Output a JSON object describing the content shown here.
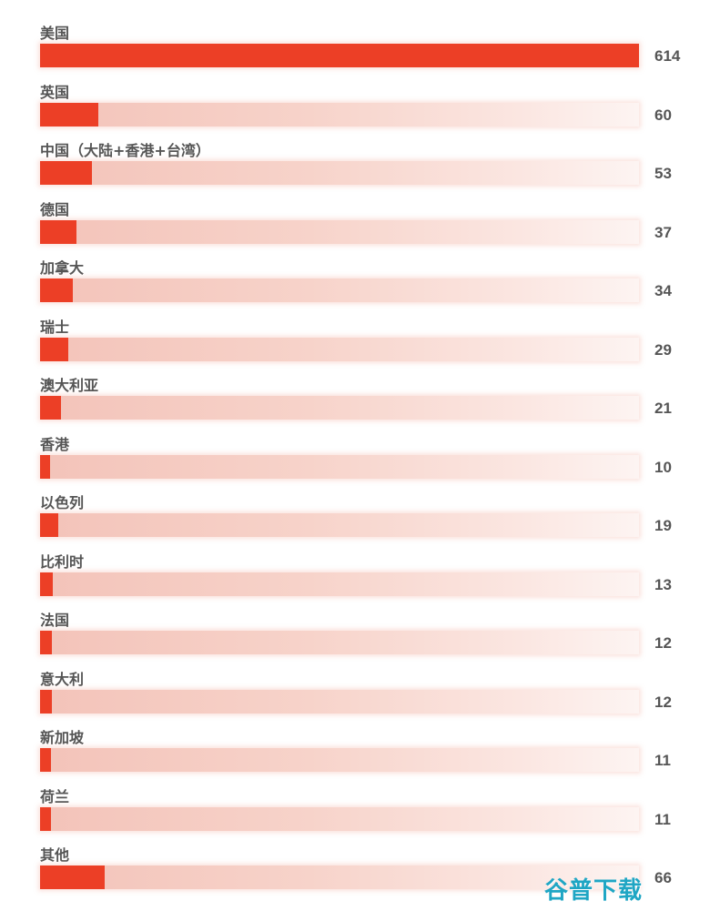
{
  "chart_data": {
    "type": "bar",
    "orientation": "horizontal",
    "title": "",
    "xlabel": "",
    "ylabel": "",
    "xlim": [
      0,
      614
    ],
    "grid": false,
    "legend": "none",
    "categories": [
      "美国",
      "英国",
      "中国（大陆+香港+台湾）",
      "德国",
      "加拿大",
      "瑞士",
      "澳大利亚",
      "香港",
      "以色列",
      "比利时",
      "法国",
      "意大利",
      "新加坡",
      "荷兰",
      "其他"
    ],
    "values": [
      614,
      60,
      53,
      37,
      34,
      29,
      21,
      10,
      19,
      13,
      12,
      12,
      11,
      11,
      66
    ],
    "colors": {
      "bar": "#ec3f26",
      "track_start": "#f3c3b9",
      "track_end": "#fdf4f2",
      "label": "#555555"
    }
  },
  "watermark": {
    "text": "谷普下载",
    "color": "#1fa6c4"
  }
}
